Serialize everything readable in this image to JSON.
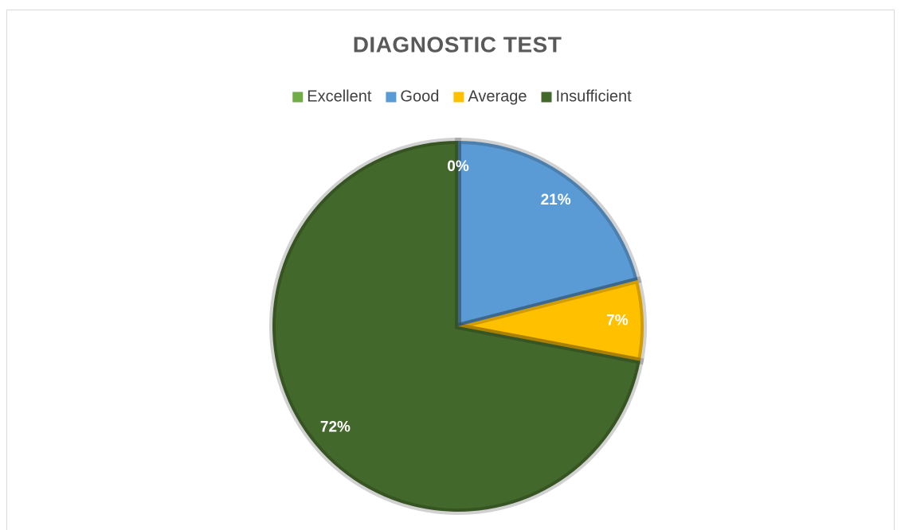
{
  "chart_data": {
    "type": "pie",
    "title": "DIAGNOSTIC TEST",
    "categories": [
      "Excellent",
      "Good",
      "Average",
      "Insufficient"
    ],
    "values": [
      0,
      21,
      7,
      72
    ],
    "value_labels": [
      "0%",
      "21%",
      "7%",
      "72%"
    ],
    "colors": [
      "#70ad47",
      "#5b9bd5",
      "#ffc000",
      "#43682b"
    ],
    "legend": "top"
  }
}
